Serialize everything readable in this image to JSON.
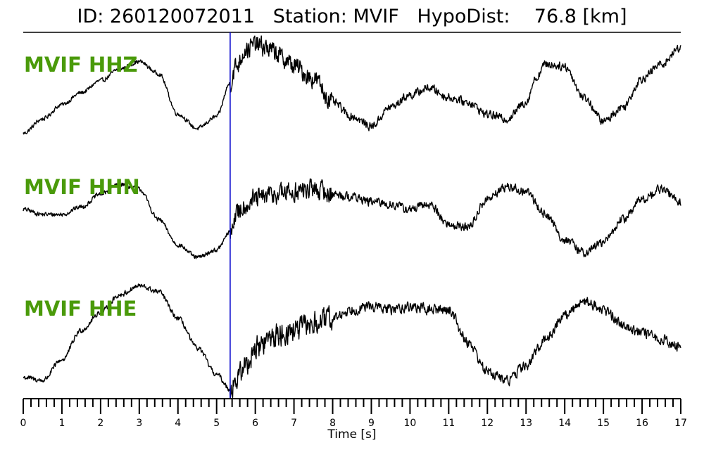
{
  "header": {
    "title": "ID: 260120072011   Station: MVIF   HypoDist:    76.8 [km]"
  },
  "colors": {
    "trace": "#000000",
    "label": "#4a9a0a",
    "pick": "#0000cc",
    "axis": "#000000"
  },
  "chart_data": {
    "type": "line",
    "title": "ID: 260120072011   Station: MVIF   HypoDist:    76.8 [km]",
    "xlabel": "Time [s]",
    "ylabel": "",
    "xlim": [
      0,
      17
    ],
    "x_ticks": [
      "0",
      "1",
      "2",
      "3",
      "4",
      "5",
      "6",
      "7",
      "8",
      "9",
      "10",
      "11",
      "12",
      "13",
      "14",
      "15",
      "16",
      "17"
    ],
    "pick_time": 5.35,
    "grid": false,
    "series": [
      {
        "name": "MVIF HHZ",
        "x": [
          0,
          0.5,
          1,
          1.5,
          2,
          2.5,
          3,
          3.5,
          4,
          4.5,
          5,
          5.35,
          5.5,
          5.75,
          6,
          6.25,
          6.5,
          6.75,
          7,
          7.5,
          8,
          8.5,
          9,
          9.5,
          10,
          10.5,
          11,
          11.5,
          12,
          12.5,
          13,
          13.25,
          13.5,
          14,
          14.5,
          15,
          15.5,
          16,
          16.5,
          17
        ],
        "values": [
          -0.95,
          -0.65,
          -0.35,
          -0.1,
          0.15,
          0.4,
          0.55,
          0.3,
          -0.55,
          -0.85,
          -0.6,
          0.1,
          0.45,
          0.8,
          0.9,
          0.85,
          0.75,
          0.6,
          0.45,
          0.2,
          -0.3,
          -0.6,
          -0.8,
          -0.4,
          -0.15,
          0.0,
          -0.2,
          -0.3,
          -0.55,
          -0.65,
          -0.3,
          0.2,
          0.5,
          0.45,
          -0.2,
          -0.7,
          -0.4,
          0.2,
          0.5,
          0.85
        ]
      },
      {
        "name": "MVIF HHN",
        "x": [
          0,
          0.5,
          1,
          1.5,
          2,
          2.5,
          3,
          3.5,
          4,
          4.5,
          5,
          5.35,
          5.5,
          5.75,
          6,
          6.5,
          7,
          7.5,
          8,
          8.5,
          9,
          9.5,
          10,
          10.5,
          11,
          11.5,
          12,
          12.5,
          13,
          13.5,
          14,
          14.5,
          15,
          15.5,
          16,
          16.5,
          17
        ],
        "values": [
          0.1,
          0.0,
          0.0,
          0.15,
          0.4,
          0.6,
          0.5,
          -0.1,
          -0.6,
          -0.85,
          -0.7,
          -0.35,
          0.0,
          0.2,
          0.3,
          0.4,
          0.45,
          0.5,
          0.4,
          0.35,
          0.25,
          0.2,
          0.1,
          0.2,
          -0.2,
          -0.25,
          0.3,
          0.55,
          0.45,
          0.0,
          -0.5,
          -0.75,
          -0.55,
          -0.1,
          0.3,
          0.5,
          0.25
        ]
      },
      {
        "name": "MVIF HHE",
        "x": [
          0,
          0.5,
          1,
          1.5,
          2,
          2.5,
          3,
          3.5,
          4,
          4.5,
          5,
          5.35,
          5.5,
          5.75,
          6,
          6.5,
          7,
          7.5,
          8,
          8.5,
          9,
          9.5,
          10,
          10.5,
          11,
          11.5,
          12,
          12.5,
          13,
          13.5,
          14,
          14.5,
          15,
          15.5,
          16,
          16.5,
          17
        ],
        "values": [
          -0.7,
          -0.75,
          -0.4,
          0.1,
          0.4,
          0.7,
          0.85,
          0.75,
          0.3,
          -0.2,
          -0.65,
          -0.9,
          -0.75,
          -0.5,
          -0.2,
          0.0,
          0.1,
          0.2,
          0.3,
          0.45,
          0.5,
          0.45,
          0.5,
          0.45,
          0.45,
          -0.1,
          -0.6,
          -0.75,
          -0.5,
          -0.05,
          0.35,
          0.6,
          0.45,
          0.2,
          0.05,
          -0.05,
          -0.2
        ]
      }
    ]
  }
}
